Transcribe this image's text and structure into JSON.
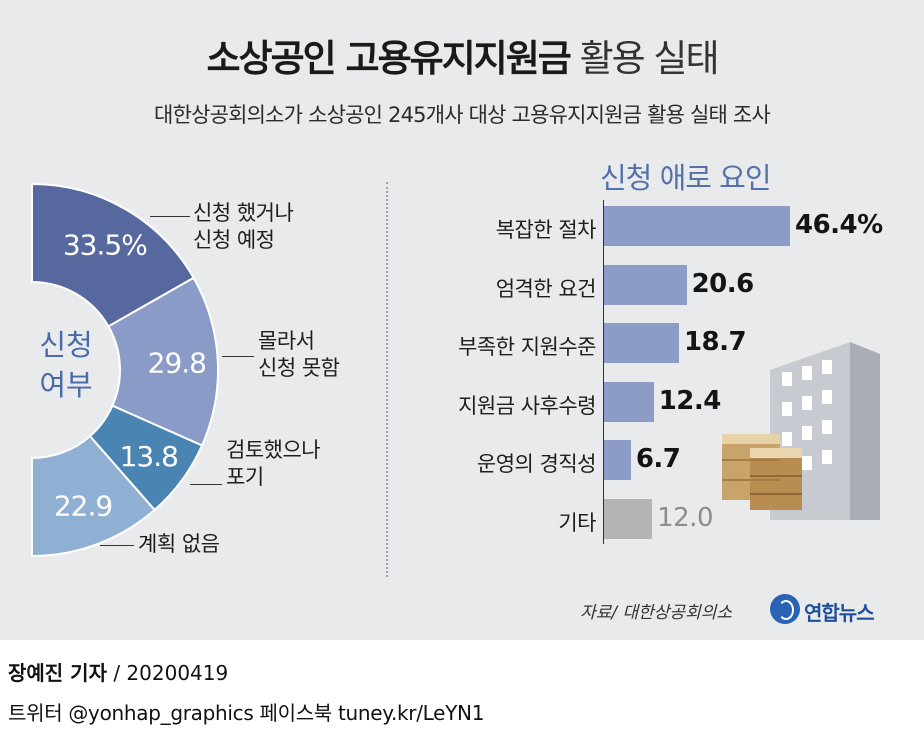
{
  "title": {
    "bold": "소상공인 고용유지지원금",
    "light": "활용 실태"
  },
  "subtitle": "대한상공회의소가 소상공인 245개사 대상 고용유지지원금 활용 실태 조사",
  "chart_data": [
    {
      "type": "pie",
      "title": "신청 여부",
      "title_lines": [
        "신청",
        "여부"
      ],
      "shape": "half-donut",
      "slices": [
        {
          "label_lines": [
            "신청 했거나",
            "신청 예정"
          ],
          "value": 33.5,
          "display": "33.5%",
          "color": "#56689e"
        },
        {
          "label_lines": [
            "몰라서",
            "신청 못함"
          ],
          "value": 29.8,
          "display": "29.8",
          "color": "#8b9bc7"
        },
        {
          "label_lines": [
            "검토했으나",
            "포기"
          ],
          "value": 13.8,
          "display": "13.8",
          "color": "#4a84b2"
        },
        {
          "label_lines": [
            "계획 없음"
          ],
          "value": 22.9,
          "display": "22.9",
          "color": "#8fb0d3"
        }
      ]
    },
    {
      "type": "bar",
      "orientation": "horizontal",
      "title": "신청 애로 요인",
      "categories": [
        "복잡한 절차",
        "엄격한 요건",
        "부족한 지원수준",
        "지원금 사후수령",
        "운영의 경직성",
        "기타"
      ],
      "values": [
        46.4,
        20.6,
        18.7,
        12.4,
        6.7,
        12.0
      ],
      "value_labels": [
        "46.4%",
        "20.6",
        "18.7",
        "12.4",
        "6.7",
        "12.0"
      ],
      "colors": [
        "#8c9cc6",
        "#8c9cc6",
        "#8c9cc6",
        "#8c9cc6",
        "#8c9cc6",
        "#b3b3b3"
      ],
      "xlim": [
        0,
        50
      ]
    }
  ],
  "source": "자료/ 대한상공회의소",
  "logo": "연합뉴스",
  "byline": {
    "name": "장예진 기자",
    "date": " / 20200419"
  },
  "social": "트위터 @yonhap_graphics  페이스북 tuney.kr/LeYN1"
}
